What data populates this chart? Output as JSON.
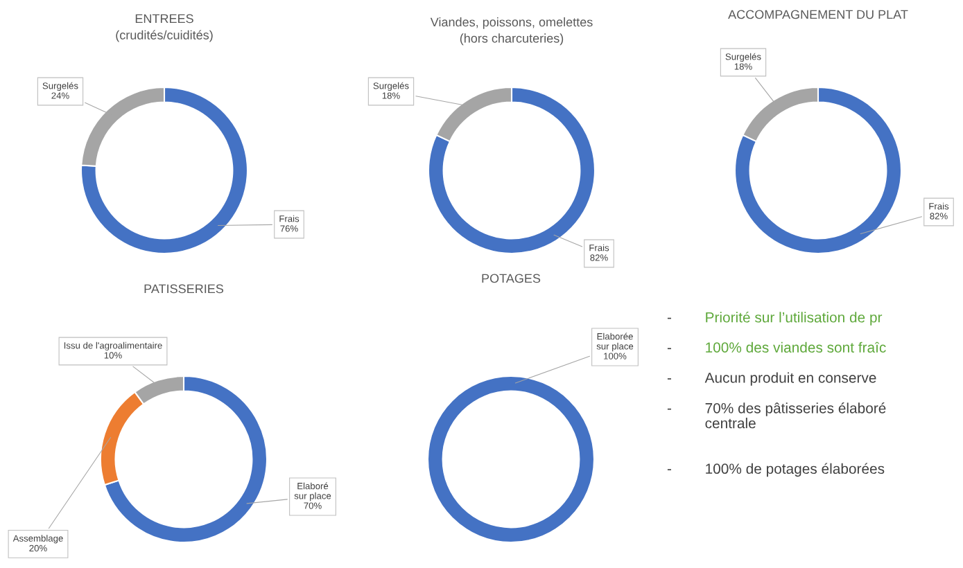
{
  "chart_data": [
    {
      "type": "donut",
      "title": "ENTREES\n(crudités/cuidités)",
      "categories": [
        "Frais",
        "Surgelés"
      ],
      "values": [
        76,
        24
      ],
      "colors": [
        "#4472c4",
        "#a5a5a5"
      ],
      "value_labels": [
        "76%",
        "24%"
      ]
    },
    {
      "type": "donut",
      "title": "Viandes, poissons, omelettes\n(hors charcuteries)",
      "categories": [
        "Frais",
        "Surgelés"
      ],
      "values": [
        82,
        18
      ],
      "colors": [
        "#4472c4",
        "#a5a5a5"
      ],
      "value_labels": [
        "82%",
        "18%"
      ]
    },
    {
      "type": "donut",
      "title": "ACCOMPAGNEMENT DU PLAT",
      "categories": [
        "Frais",
        "Surgelés"
      ],
      "values": [
        82,
        18
      ],
      "colors": [
        "#4472c4",
        "#a5a5a5"
      ],
      "value_labels": [
        "82%",
        "18%"
      ]
    },
    {
      "type": "donut",
      "title": "PATISSERIES",
      "categories": [
        "Elaboré\nsur place",
        "Assemblage",
        "Issu de l'agroalimentaire"
      ],
      "values": [
        70,
        20,
        10
      ],
      "colors": [
        "#4472c4",
        "#ed7d31",
        "#a5a5a5"
      ],
      "value_labels": [
        "70%",
        "20%",
        "10%"
      ]
    },
    {
      "type": "pie",
      "title": "POTAGES",
      "categories": [
        "Elaborée\nsur place"
      ],
      "values": [
        100
      ],
      "colors": [
        "#4472c4"
      ],
      "value_labels": [
        "100%"
      ]
    },
    {
      "type": "other",
      "annotations": [
        "-\tPriorité sur l’utilisation de pr",
        "-\t100% des viandes sont fraîc",
        "-\tAucun produit en conserve",
        "-\t70% des pâtisseries élaboré\ncentrale",
        "-\t100% de potages élaborées"
      ],
      "colors": [
        "#5ea83a",
        "#5ea83a",
        "#404040",
        "#404040",
        "#404040"
      ]
    }
  ]
}
